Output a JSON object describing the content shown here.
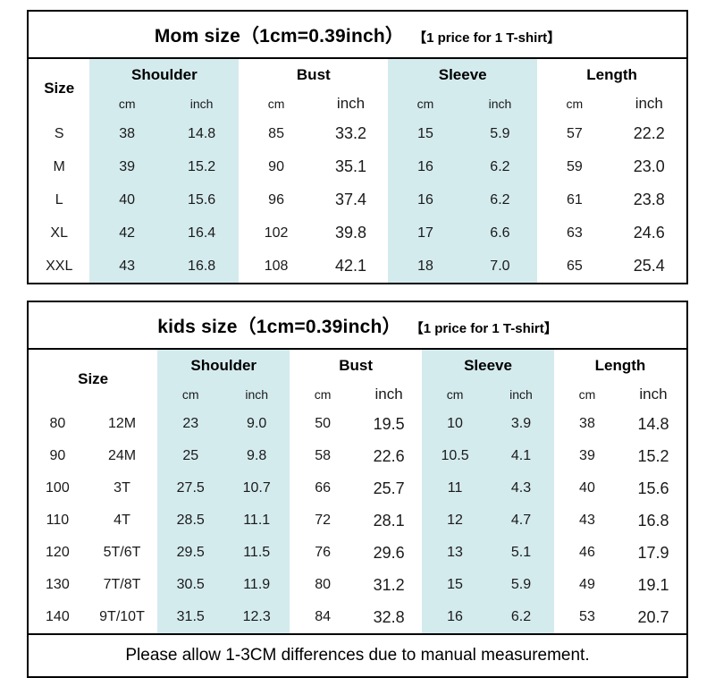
{
  "labels": {
    "size": "Size",
    "shoulder": "Shoulder",
    "bust": "Bust",
    "sleeve": "Sleeve",
    "length": "Length",
    "cm": "cm",
    "inch": "inch"
  },
  "mom_table": {
    "title": "Mom size（1cm=0.39inch）",
    "badge": "【1 price for 1 T-shirt】",
    "rows": [
      [
        "S",
        "38",
        "14.8",
        "85",
        "33.2",
        "15",
        "5.9",
        "57",
        "22.2"
      ],
      [
        "M",
        "39",
        "15.2",
        "90",
        "35.1",
        "16",
        "6.2",
        "59",
        "23.0"
      ],
      [
        "L",
        "40",
        "15.6",
        "96",
        "37.4",
        "16",
        "6.2",
        "61",
        "23.8"
      ],
      [
        "XL",
        "42",
        "16.4",
        "102",
        "39.8",
        "17",
        "6.6",
        "63",
        "24.6"
      ],
      [
        "XXL",
        "43",
        "16.8",
        "108",
        "42.1",
        "18",
        "7.0",
        "65",
        "25.4"
      ]
    ]
  },
  "kids_table": {
    "title": "kids size（1cm=0.39inch）",
    "badge": "【1 price for 1 T-shirt】",
    "rows": [
      [
        "80",
        "12M",
        "23",
        "9.0",
        "50",
        "19.5",
        "10",
        "3.9",
        "38",
        "14.8"
      ],
      [
        "90",
        "24M",
        "25",
        "9.8",
        "58",
        "22.6",
        "10.5",
        "4.1",
        "39",
        "15.2"
      ],
      [
        "100",
        "3T",
        "27.5",
        "10.7",
        "66",
        "25.7",
        "11",
        "4.3",
        "40",
        "15.6"
      ],
      [
        "110",
        "4T",
        "28.5",
        "11.1",
        "72",
        "28.1",
        "12",
        "4.7",
        "43",
        "16.8"
      ],
      [
        "120",
        "5T/6T",
        "29.5",
        "11.5",
        "76",
        "29.6",
        "13",
        "5.1",
        "46",
        "17.9"
      ],
      [
        "130",
        "7T/8T",
        "30.5",
        "11.9",
        "80",
        "31.2",
        "15",
        "5.9",
        "49",
        "19.1"
      ],
      [
        "140",
        "9T/10T",
        "31.5",
        "12.3",
        "84",
        "32.8",
        "16",
        "6.2",
        "53",
        "20.7"
      ]
    ]
  },
  "footer": {
    "note": "Please allow 1-3CM differences due to manual measurement."
  },
  "colors": {
    "highlight": "#d4ebee"
  }
}
